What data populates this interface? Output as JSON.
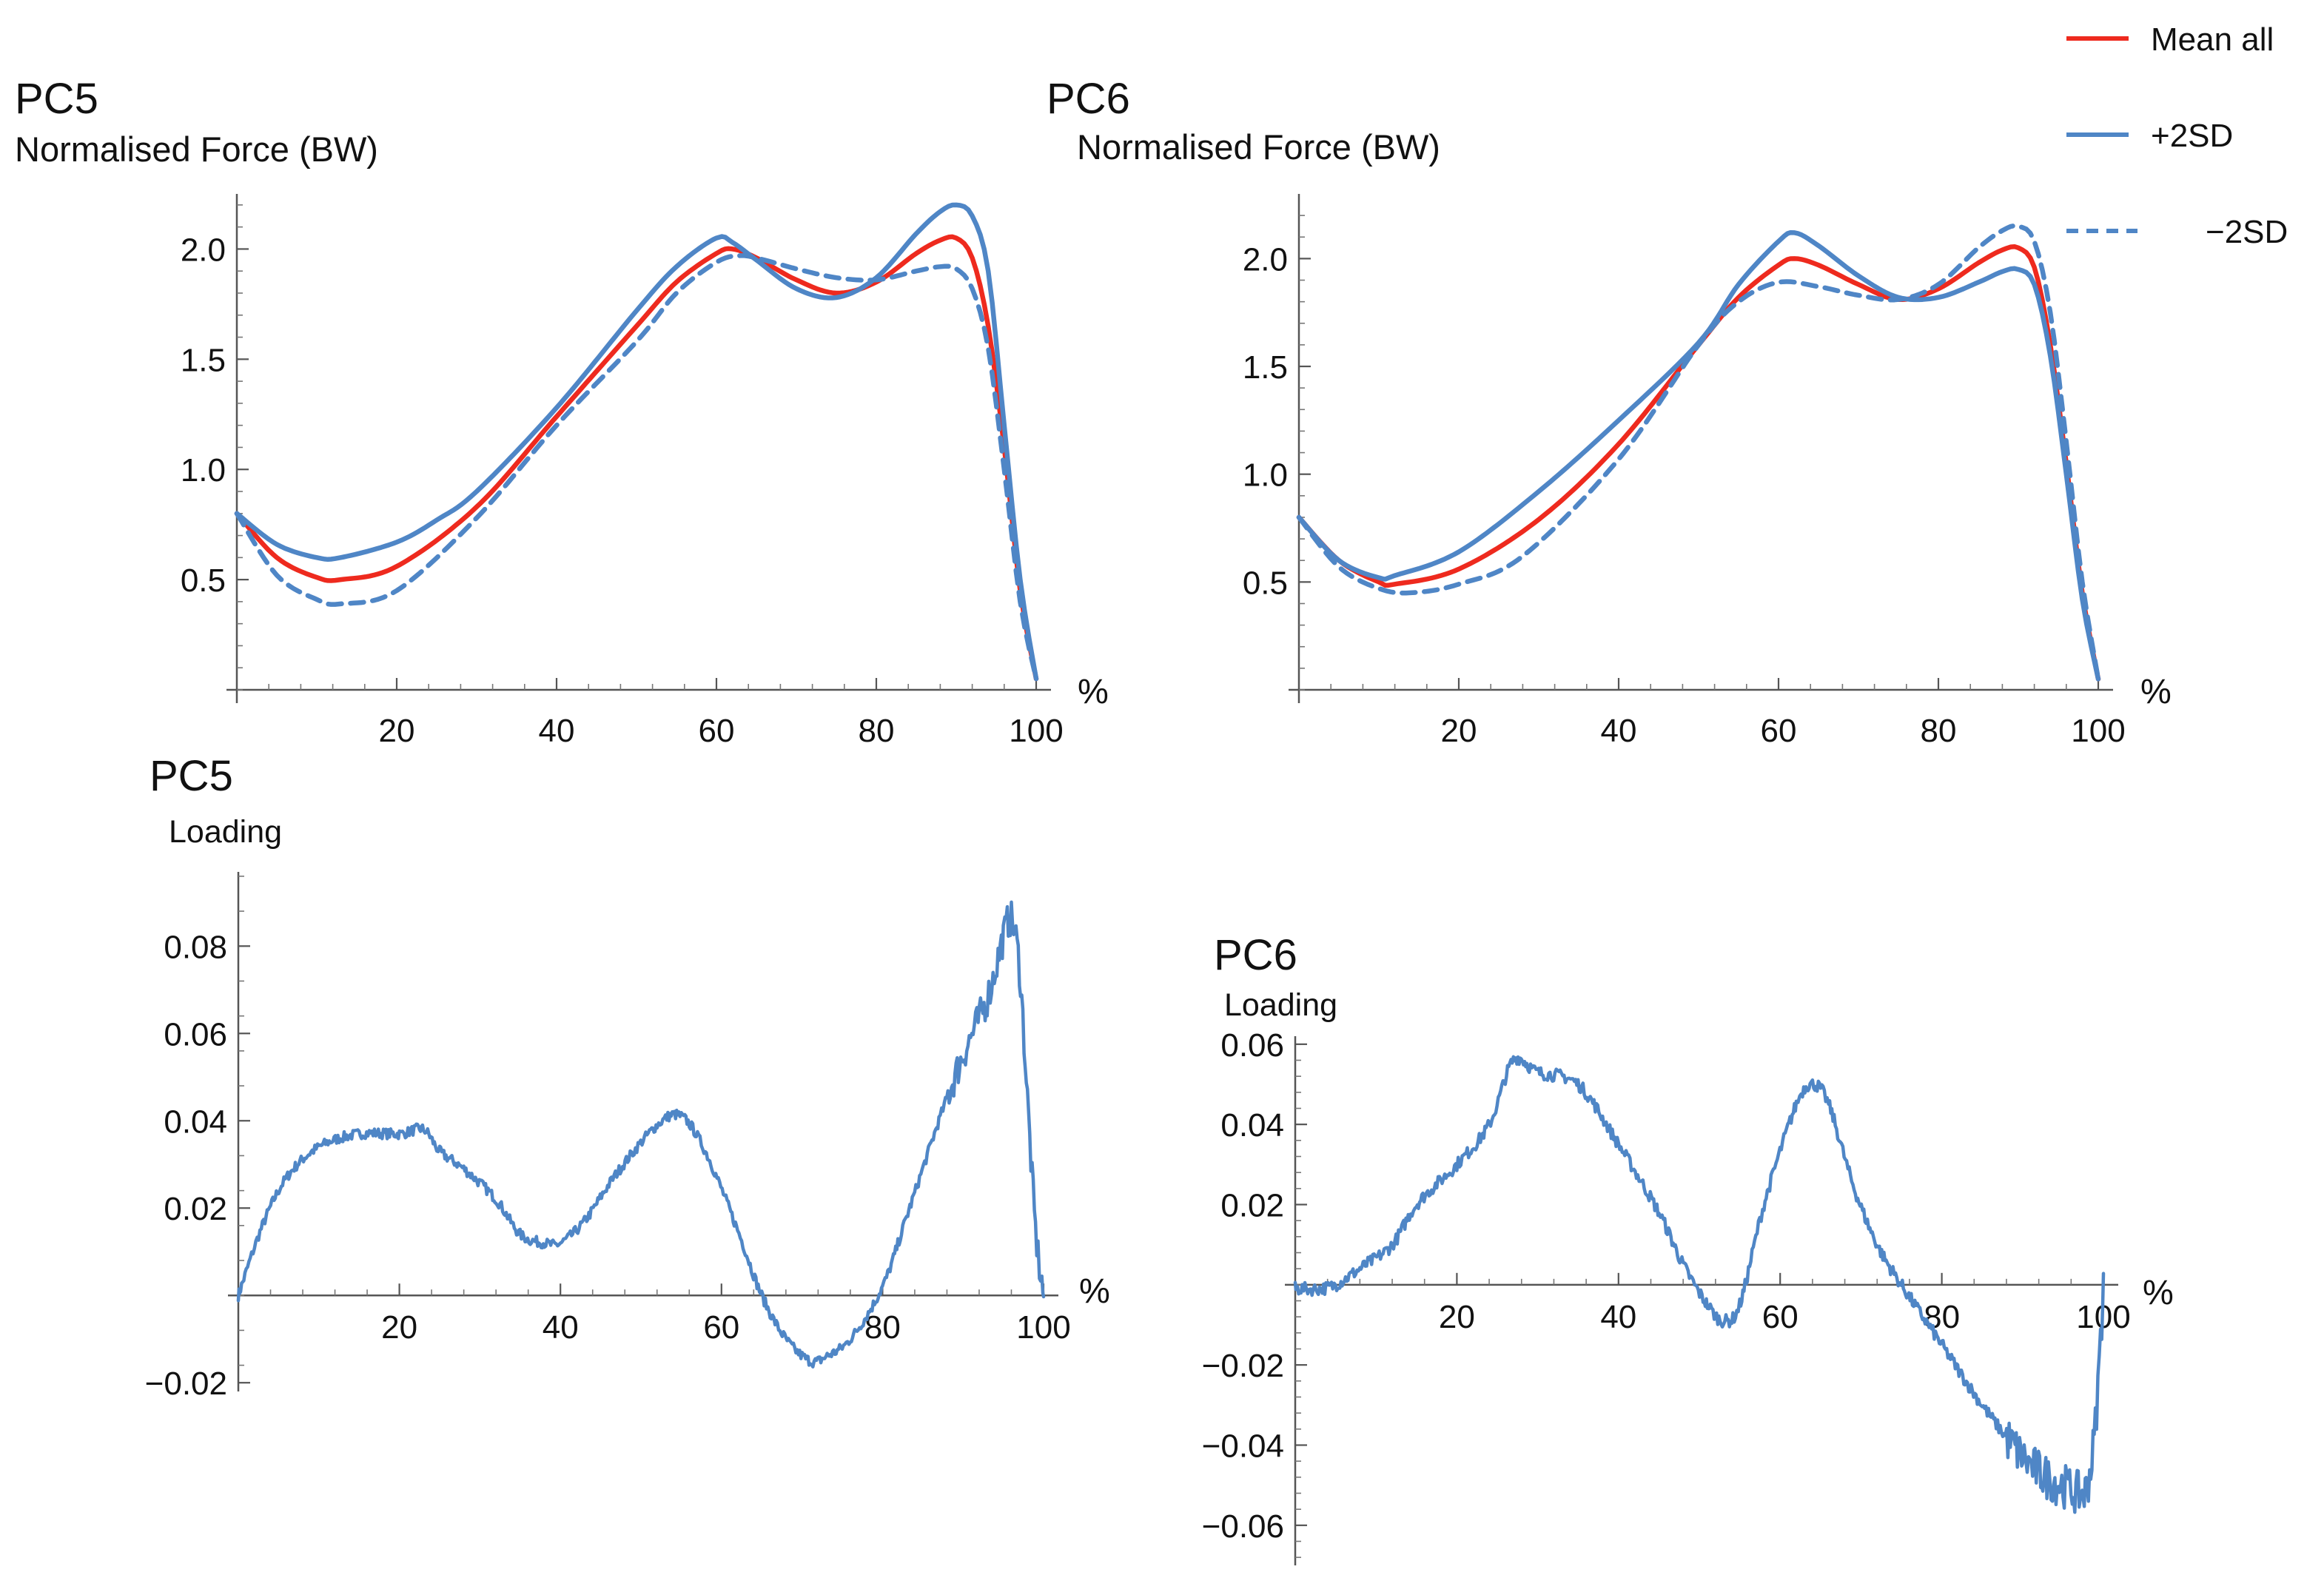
{
  "chart_data": [
    {
      "id": "pc5-force",
      "type": "line",
      "title": "PC5",
      "ylabel": "Normalised Force (BW)",
      "xlabel": "%",
      "xlim": [
        0,
        100
      ],
      "ylim": [
        0,
        2.25
      ],
      "xticks": [
        20,
        40,
        60,
        80,
        100
      ],
      "yticks": [
        0.5,
        1.0,
        1.5,
        2.0
      ],
      "ytick_labels": [
        "0.5",
        "1.0",
        "1.5",
        "2.0"
      ],
      "series": [
        {
          "name": "Mean all",
          "color": "#ee2a1e",
          "dash": "solid",
          "x": [
            0,
            5,
            10,
            13,
            20,
            30,
            40,
            50,
            55,
            60,
            62,
            65,
            70,
            75,
            80,
            85,
            88,
            90,
            92,
            94,
            96,
            98,
            100
          ],
          "y": [
            0.8,
            0.6,
            0.51,
            0.5,
            0.56,
            0.83,
            1.24,
            1.65,
            1.85,
            1.98,
            2.0,
            1.96,
            1.86,
            1.8,
            1.85,
            1.98,
            2.04,
            2.05,
            1.96,
            1.65,
            1.1,
            0.45,
            0.05
          ]
        },
        {
          "name": "+2SD",
          "color": "#4f86c6",
          "dash": "solid",
          "x": [
            0,
            5,
            10,
            13,
            20,
            25,
            30,
            40,
            50,
            55,
            60,
            62,
            65,
            70,
            75,
            80,
            85,
            88,
            90,
            92,
            94,
            96,
            98,
            100
          ],
          "y": [
            0.8,
            0.66,
            0.6,
            0.6,
            0.67,
            0.77,
            0.9,
            1.28,
            1.72,
            1.92,
            2.05,
            2.03,
            1.95,
            1.82,
            1.78,
            1.87,
            2.07,
            2.17,
            2.2,
            2.15,
            1.9,
            1.2,
            0.5,
            0.05
          ]
        },
        {
          "name": "−2SD",
          "color": "#4f86c6",
          "dash": "dashed",
          "x": [
            0,
            5,
            10,
            13,
            20,
            30,
            40,
            50,
            55,
            60,
            63,
            66,
            70,
            75,
            80,
            85,
            88,
            90,
            92,
            94,
            96,
            98,
            100
          ],
          "y": [
            0.8,
            0.52,
            0.41,
            0.39,
            0.45,
            0.78,
            1.2,
            1.58,
            1.8,
            1.94,
            1.97,
            1.95,
            1.91,
            1.87,
            1.86,
            1.9,
            1.92,
            1.91,
            1.82,
            1.55,
            1.0,
            0.4,
            0.05
          ]
        }
      ]
    },
    {
      "id": "pc6-force",
      "type": "line",
      "title": "PC6",
      "ylabel": "Normalised Force (BW)",
      "xlabel": "%",
      "xlim": [
        0,
        100
      ],
      "ylim": [
        0,
        2.3
      ],
      "xticks": [
        20,
        40,
        60,
        80,
        100
      ],
      "yticks": [
        0.5,
        1.0,
        1.5,
        2.0
      ],
      "ytick_labels": [
        "0.5",
        "1.0",
        "1.5",
        "2.0"
      ],
      "series": [
        {
          "name": "Mean all",
          "color": "#ee2a1e",
          "dash": "solid",
          "x": [
            0,
            5,
            10,
            12,
            20,
            30,
            40,
            50,
            55,
            60,
            62,
            65,
            70,
            75,
            80,
            85,
            88,
            90,
            92,
            94,
            96,
            98,
            100
          ],
          "y": [
            0.8,
            0.6,
            0.5,
            0.49,
            0.56,
            0.79,
            1.14,
            1.6,
            1.82,
            1.97,
            2.0,
            1.97,
            1.88,
            1.81,
            1.86,
            1.98,
            2.04,
            2.05,
            1.96,
            1.6,
            1.05,
            0.45,
            0.05
          ]
        },
        {
          "name": "+2SD",
          "color": "#4f86c6",
          "dash": "solid",
          "x": [
            0,
            5,
            10,
            12,
            20,
            30,
            40,
            50,
            55,
            60,
            62,
            65,
            70,
            75,
            80,
            85,
            88,
            90,
            92,
            94,
            96,
            98,
            100
          ],
          "y": [
            0.8,
            0.6,
            0.52,
            0.53,
            0.64,
            0.92,
            1.25,
            1.61,
            1.88,
            2.08,
            2.12,
            2.06,
            1.92,
            1.82,
            1.82,
            1.89,
            1.94,
            1.95,
            1.88,
            1.55,
            1.0,
            0.42,
            0.05
          ]
        },
        {
          "name": "−2SD",
          "color": "#4f86c6",
          "dash": "dashed",
          "x": [
            0,
            5,
            10,
            14,
            20,
            28,
            40,
            50,
            55,
            60,
            65,
            70,
            75,
            80,
            85,
            88,
            90,
            92,
            94,
            96,
            98,
            100
          ],
          "y": [
            0.8,
            0.57,
            0.47,
            0.45,
            0.49,
            0.62,
            1.07,
            1.6,
            1.8,
            1.89,
            1.87,
            1.83,
            1.81,
            1.88,
            2.05,
            2.13,
            2.15,
            2.08,
            1.75,
            1.15,
            0.5,
            0.05
          ]
        }
      ]
    },
    {
      "id": "pc5-loading",
      "type": "line",
      "title": "PC5",
      "ylabel": "Loading",
      "xlabel": "%",
      "xlim": [
        0,
        100
      ],
      "ylim": [
        -0.022,
        0.097
      ],
      "xticks": [
        20,
        40,
        60,
        80,
        100
      ],
      "yticks": [
        -0.02,
        0.02,
        0.04,
        0.06,
        0.08
      ],
      "ytick_labels": [
        "−0.02",
        "0.02",
        "0.04",
        "0.06",
        "0.08"
      ],
      "noise": 0.0012,
      "series": [
        {
          "name": "PC5 loading",
          "color": "#4f86c6",
          "dash": "solid",
          "x": [
            0,
            3,
            6,
            10,
            15,
            20,
            23,
            25,
            28,
            32,
            35,
            38,
            40,
            43,
            47,
            52,
            55,
            58,
            62,
            65,
            68,
            71,
            73,
            76,
            80,
            83,
            87,
            90,
            93,
            95,
            96,
            97,
            98,
            99,
            100
          ],
          "y": [
            0.0,
            0.016,
            0.027,
            0.034,
            0.037,
            0.037,
            0.038,
            0.033,
            0.029,
            0.022,
            0.014,
            0.012,
            0.012,
            0.017,
            0.028,
            0.039,
            0.041,
            0.033,
            0.015,
            0.0,
            -0.01,
            -0.015,
            -0.014,
            -0.01,
            0.002,
            0.018,
            0.04,
            0.055,
            0.068,
            0.082,
            0.086,
            0.075,
            0.045,
            0.015,
            0.0
          ]
        }
      ]
    },
    {
      "id": "pc6-loading",
      "type": "line",
      "title": "PC6",
      "ylabel": "Loading",
      "xlabel": "%",
      "xlim": [
        0,
        100
      ],
      "ylim": [
        -0.07,
        0.062
      ],
      "xticks": [
        20,
        40,
        60,
        80,
        100
      ],
      "yticks": [
        -0.06,
        -0.04,
        -0.02,
        0.02,
        0.04,
        0.06
      ],
      "ytick_labels": [
        "−0.06",
        "−0.04",
        "−0.02",
        "0.02",
        "0.04",
        "0.06"
      ],
      "noise": 0.0016,
      "series": [
        {
          "name": "PC6 loading",
          "color": "#4f86c6",
          "dash": "solid",
          "x": [
            0,
            3,
            5,
            8,
            12,
            15,
            20,
            24,
            27,
            30,
            35,
            40,
            45,
            48,
            51,
            53,
            55,
            58,
            62,
            64,
            66,
            69,
            72,
            75,
            80,
            85,
            90,
            93,
            95,
            97,
            98,
            99,
            100
          ],
          "y": [
            -0.001,
            -0.001,
            0.0,
            0.004,
            0.01,
            0.02,
            0.03,
            0.04,
            0.056,
            0.053,
            0.05,
            0.035,
            0.018,
            0.005,
            -0.005,
            -0.009,
            -0.005,
            0.02,
            0.045,
            0.05,
            0.045,
            0.025,
            0.01,
            0.0,
            -0.015,
            -0.03,
            -0.043,
            -0.048,
            -0.05,
            -0.052,
            -0.05,
            -0.035,
            0.0
          ]
        }
      ]
    }
  ],
  "legend": {
    "position": "top-right",
    "items": [
      {
        "label": "Mean all",
        "color": "#ee2a1e",
        "dash": "solid"
      },
      {
        "label": "+2SD",
        "color": "#4f86c6",
        "dash": "solid"
      },
      {
        "label": "−2SD",
        "color": "#4f86c6",
        "dash": "dashed"
      }
    ]
  }
}
